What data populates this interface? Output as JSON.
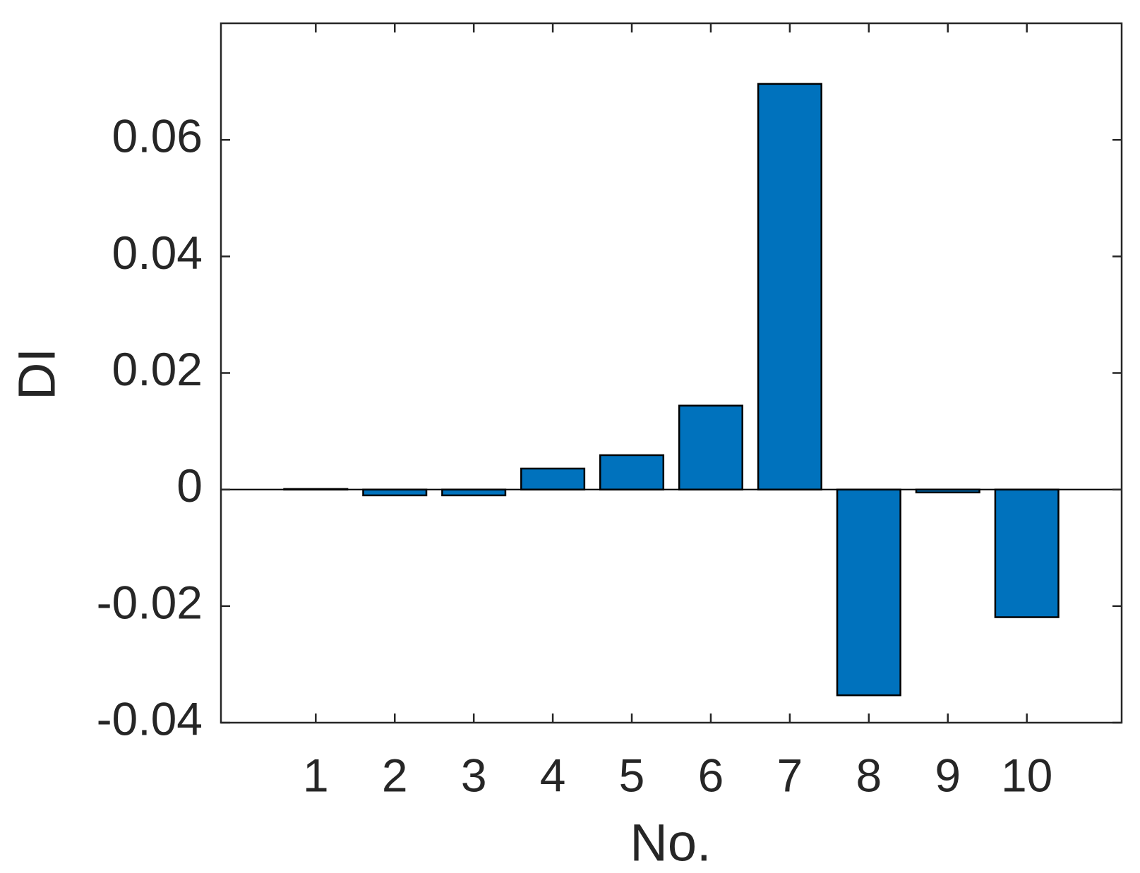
{
  "chart_data": {
    "type": "bar",
    "x": [
      1,
      2,
      3,
      4,
      5,
      6,
      7,
      8,
      9,
      10
    ],
    "values": [
      0.0001,
      -0.001,
      -0.001,
      0.0036,
      0.0059,
      0.0144,
      0.0696,
      -0.0353,
      -0.0005,
      -0.0219
    ],
    "color": "#0072bd",
    "xlabel": "No.",
    "ylabel": "DI",
    "xlim": [
      -0.2,
      11.2
    ],
    "xticks": [
      1,
      2,
      3,
      4,
      5,
      6,
      7,
      8,
      9,
      10
    ],
    "ylim": [
      -0.04,
      0.08
    ],
    "yticks": [
      -0.04,
      -0.02,
      0,
      0.02,
      0.04,
      0.06
    ],
    "grid": false
  }
}
